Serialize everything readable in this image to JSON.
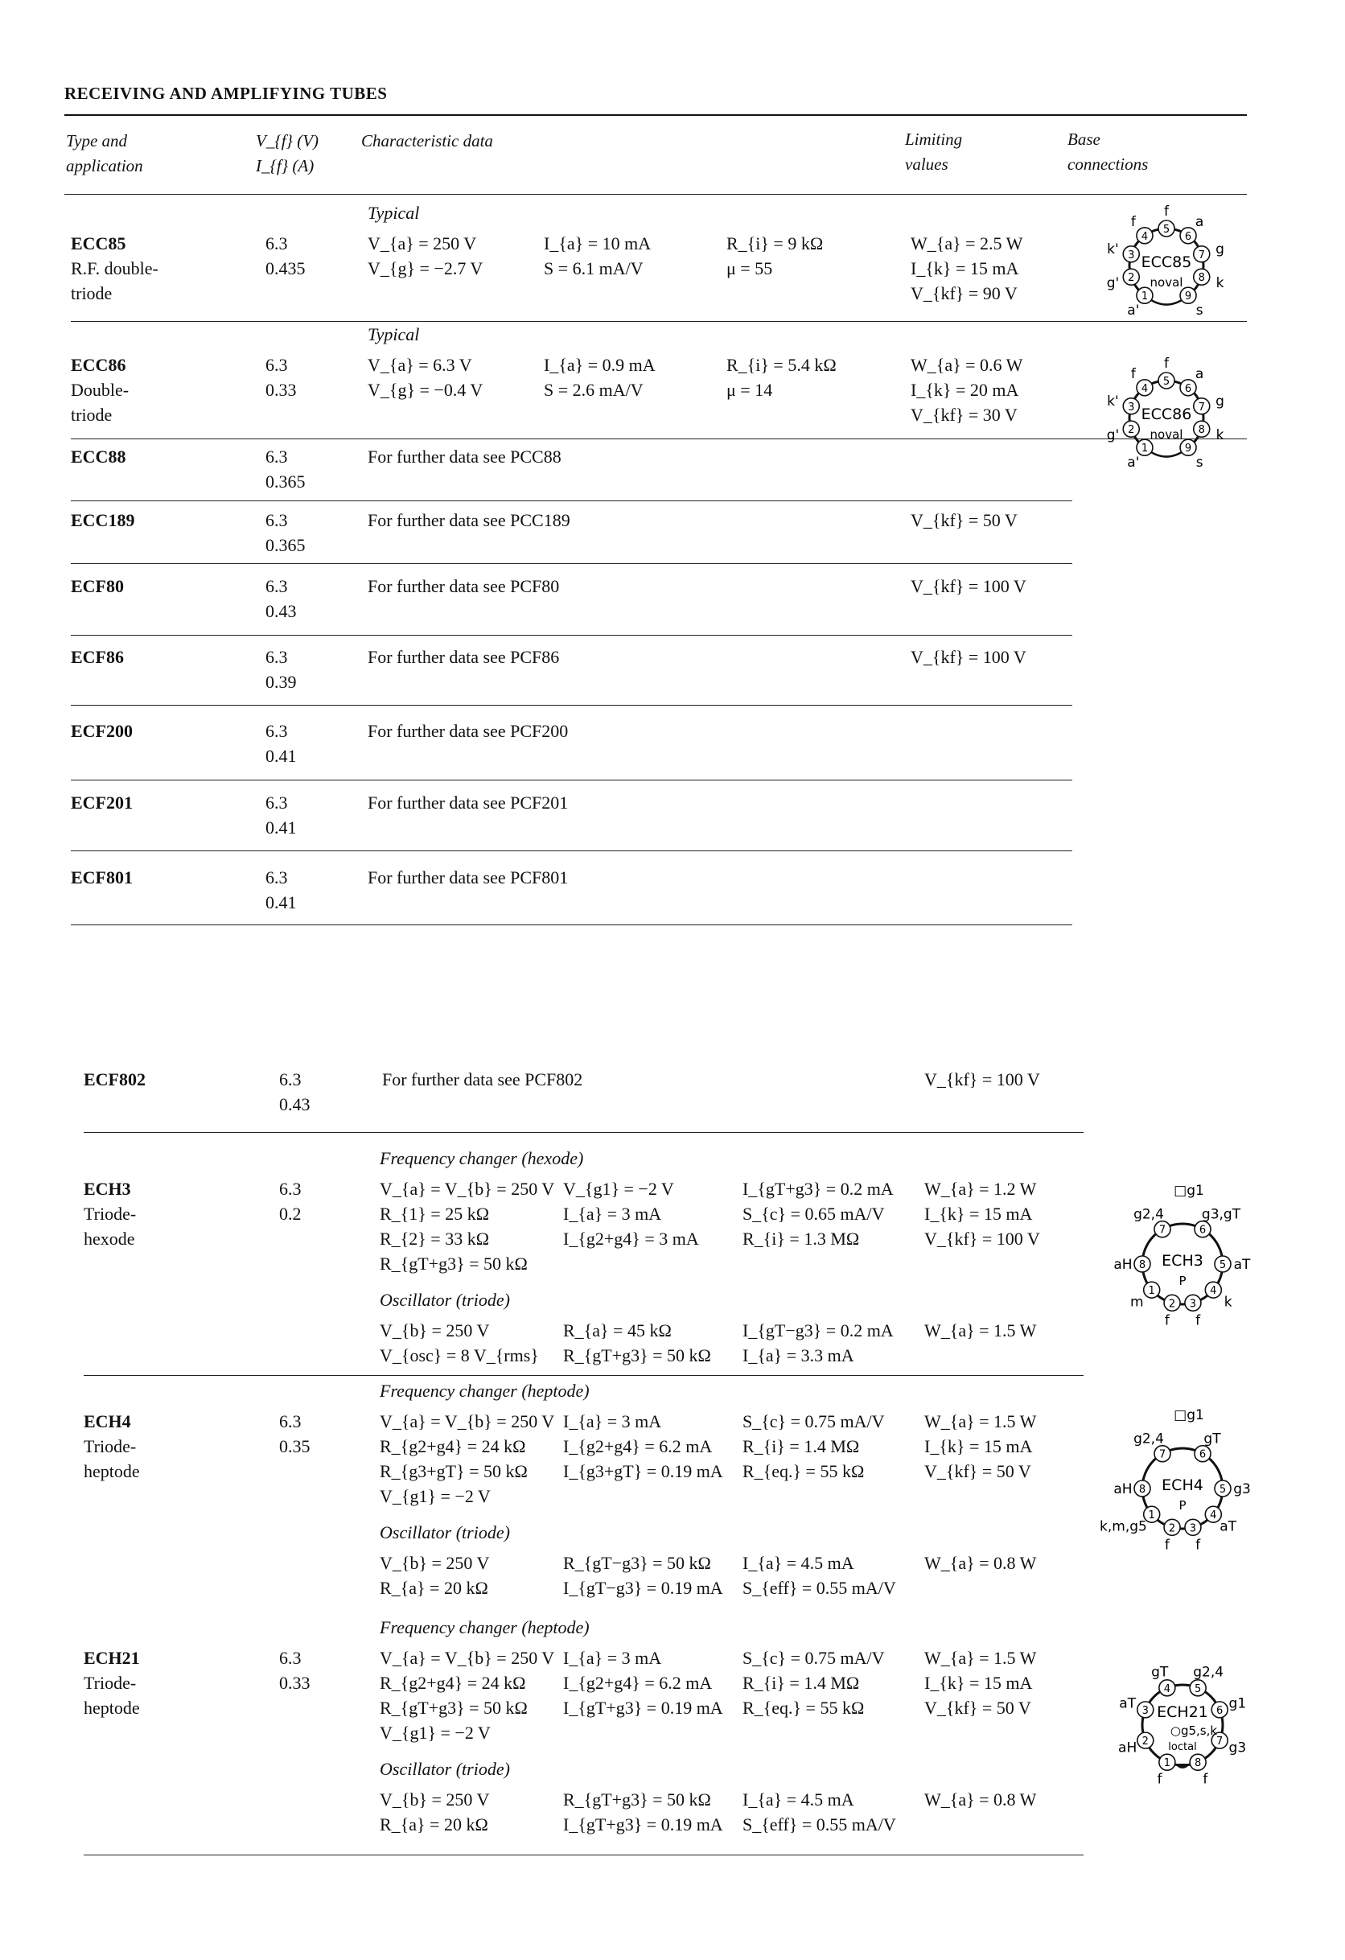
{
  "page_title": "RECEIVING AND AMPLIFYING TUBES",
  "header": {
    "type_line1": "Type and",
    "type_line2": "application",
    "vf": "V_{f} (V)",
    "if": "I_{f} (A)",
    "characteristic": "Characteristic data",
    "limiting_line1": "Limiting",
    "limiting_line2": "values",
    "base_line1": "Base",
    "base_line2": "connections"
  },
  "entries": [
    {
      "type": "ECC85",
      "application": [
        "R.F. double-",
        "triode"
      ],
      "vf": "6.3",
      "if": "0.435",
      "sections": [
        {
          "label": "Typical",
          "rows": [
            [
              "V_{a} = 250 V",
              "I_{a} = 10 mA",
              "R_{i} = 9 kΩ",
              "W_{a} = 2.5 W"
            ],
            [
              "V_{g} = −2.7 V",
              "S = 6.1 mA/V",
              "μ = 55",
              "I_{k} = 15 mA"
            ],
            [
              "",
              "",
              "",
              "V_{kf} = 90 V"
            ]
          ]
        }
      ]
    },
    {
      "type": "ECC86",
      "application": [
        "Double-",
        "triode"
      ],
      "vf": "6.3",
      "if": "0.33",
      "sections": [
        {
          "label": "Typical",
          "rows": [
            [
              "V_{a} = 6.3 V",
              "I_{a} = 0.9 mA",
              "R_{i} = 5.4 kΩ",
              "W_{a} = 0.6 W"
            ],
            [
              "V_{g} = −0.4 V",
              "S = 2.6 mA/V",
              "μ = 14",
              "I_{k} = 20 mA"
            ],
            [
              "",
              "",
              "",
              "V_{kf} = 30 V"
            ]
          ]
        }
      ]
    },
    {
      "type": "ECC88",
      "application": [],
      "vf": "6.3",
      "if": "0.365",
      "note": "For further data see PCC88",
      "limiting": ""
    },
    {
      "type": "ECC189",
      "application": [],
      "vf": "6.3",
      "if": "0.365",
      "note": "For further data see PCC189",
      "limiting": "V_{kf} = 50 V"
    },
    {
      "type": "ECF80",
      "application": [],
      "vf": "6.3",
      "if": "0.43",
      "note": "For further data see PCF80",
      "limiting": "V_{kf} = 100 V"
    },
    {
      "type": "ECF86",
      "application": [],
      "vf": "6.3",
      "if": "0.39",
      "note": "For further data see PCF86",
      "limiting": "V_{kf} = 100 V"
    },
    {
      "type": "ECF200",
      "application": [],
      "vf": "6.3",
      "if": "0.41",
      "note": "For further data see PCF200",
      "limiting": ""
    },
    {
      "type": "ECF201",
      "application": [],
      "vf": "6.3",
      "if": "0.41",
      "note": "For further data see PCF201",
      "limiting": ""
    },
    {
      "type": "ECF801",
      "application": [],
      "vf": "6.3",
      "if": "0.41",
      "note": "For further data see PCF801",
      "limiting": ""
    },
    {
      "type": "ECF802",
      "application": [],
      "vf": "6.3",
      "if": "0.43",
      "note": "For further data see PCF802",
      "limiting": "V_{kf} = 100 V"
    },
    {
      "type": "ECH3",
      "application": [
        "Triode-",
        "hexode"
      ],
      "vf": "6.3",
      "if": "0.2",
      "sections": [
        {
          "label": "Frequency changer (hexode)",
          "rows": [
            [
              "V_{a} = V_{b} = 250 V",
              "V_{g1} = −2 V",
              "I_{gT+g3} = 0.2 mA",
              "W_{a} = 1.2 W"
            ],
            [
              "R_{1} = 25 kΩ",
              "I_{a} = 3 mA",
              "S_{c} = 0.65 mA/V",
              "I_{k} = 15 mA"
            ],
            [
              "R_{2} = 33 kΩ",
              "I_{g2+g4} = 3 mA",
              "R_{i} = 1.3 MΩ",
              "V_{kf} = 100 V"
            ],
            [
              "R_{gT+g3} = 50 kΩ",
              "",
              "",
              ""
            ]
          ]
        },
        {
          "label": "Oscillator (triode)",
          "rows": [
            [
              "V_{b} = 250 V",
              "R_{a} = 45 kΩ",
              "I_{gT−g3} = 0.2 mA",
              "W_{a} = 1.5 W"
            ],
            [
              "V_{osc} = 8 V_{rms}",
              "R_{gT+g3} = 50 kΩ",
              "I_{a} = 3.3 mA",
              ""
            ]
          ]
        }
      ]
    },
    {
      "type": "ECH4",
      "application": [
        "Triode-",
        "heptode"
      ],
      "vf": "6.3",
      "if": "0.35",
      "sections": [
        {
          "label": "Frequency changer (heptode)",
          "rows": [
            [
              "V_{a} = V_{b} = 250 V",
              "I_{a} = 3 mA",
              "S_{c} = 0.75 mA/V",
              "W_{a} = 1.5 W"
            ],
            [
              "R_{g2+g4} = 24 kΩ",
              "I_{g2+g4} = 6.2 mA",
              "R_{i} = 1.4 MΩ",
              "I_{k} = 15 mA"
            ],
            [
              "R_{g3+gT} = 50 kΩ",
              "I_{g3+gT} = 0.19 mA",
              "R_{eq.} = 55 kΩ",
              "V_{kf} = 50 V"
            ],
            [
              "V_{g1} = −2 V",
              "",
              "",
              ""
            ]
          ]
        },
        {
          "label": "Oscillator (triode)",
          "rows": [
            [
              "V_{b} = 250 V",
              "R_{gT−g3} = 50 kΩ",
              "I_{a} = 4.5 mA",
              "W_{a} = 0.8 W"
            ],
            [
              "R_{a} = 20 kΩ",
              "I_{gT−g3} = 0.19 mA",
              "S_{eff} = 0.55 mA/V",
              ""
            ]
          ]
        }
      ]
    },
    {
      "type": "ECH21",
      "application": [
        "Triode-",
        "heptode"
      ],
      "vf": "6.3",
      "if": "0.33",
      "sections": [
        {
          "label": "Frequency changer (heptode)",
          "rows": [
            [
              "V_{a} = V_{b} = 250 V",
              "I_{a} = 3 mA",
              "S_{c} = 0.75 mA/V",
              "W_{a} = 1.5 W"
            ],
            [
              "R_{g2+g4} = 24 kΩ",
              "I_{g2+g4} = 6.2 mA",
              "R_{i} = 1.4 MΩ",
              "I_{k} = 15 mA"
            ],
            [
              "R_{gT+g3} = 50 kΩ",
              "I_{gT+g3} = 0.19 mA",
              "R_{eq.} = 55 kΩ",
              "V_{kf} = 50 V"
            ],
            [
              "V_{g1} = −2 V",
              "",
              "",
              ""
            ]
          ]
        },
        {
          "label": "Oscillator (triode)",
          "rows": [
            [
              "V_{b} = 250 V",
              "R_{gT+g3} = 50 kΩ",
              "I_{a} = 4.5 mA",
              "W_{a} = 0.8 W"
            ],
            [
              "R_{a} = 20 kΩ",
              "I_{gT+g3} = 0.19 mA",
              "S_{eff} = 0.55 mA/V",
              ""
            ]
          ]
        }
      ]
    }
  ],
  "base_diagrams": [
    {
      "tube": "ECC85",
      "base": "noval",
      "center_labels": [
        "ECC85",
        "noval"
      ],
      "pins": [
        [
          "1",
          "a'"
        ],
        [
          "2",
          "g'"
        ],
        [
          "3",
          "k'"
        ],
        [
          "4",
          "f"
        ],
        [
          "5",
          "f"
        ],
        [
          "6",
          "a"
        ],
        [
          "7",
          "g"
        ],
        [
          "8",
          "k"
        ],
        [
          "9",
          "s"
        ]
      ]
    },
    {
      "tube": "ECC86",
      "base": "noval",
      "center_labels": [
        "ECC86",
        "noval"
      ],
      "pins": [
        [
          "1",
          "a'"
        ],
        [
          "2",
          "g'"
        ],
        [
          "3",
          "k'"
        ],
        [
          "4",
          "f"
        ],
        [
          "5",
          "f"
        ],
        [
          "6",
          "a"
        ],
        [
          "7",
          "g"
        ],
        [
          "8",
          "k"
        ],
        [
          "9",
          "s"
        ]
      ]
    },
    {
      "tube": "ECH3",
      "base": "side-contact",
      "center_labels": [
        "ECH3",
        "P"
      ],
      "top_label": "□g1",
      "pins": [
        [
          "1",
          "m"
        ],
        [
          "2",
          "f"
        ],
        [
          "3",
          "f"
        ],
        [
          "4",
          "k"
        ],
        [
          "5",
          "aT"
        ],
        [
          "6",
          "g3,gT"
        ],
        [
          "7",
          "g2,4"
        ],
        [
          "8",
          "aH"
        ]
      ]
    },
    {
      "tube": "ECH4",
      "base": "side-contact",
      "center_labels": [
        "ECH4",
        "P"
      ],
      "top_label": "□g1",
      "pins": [
        [
          "1",
          "k,m,g5"
        ],
        [
          "2",
          "f"
        ],
        [
          "3",
          "f"
        ],
        [
          "4",
          "aT"
        ],
        [
          "5",
          "g3"
        ],
        [
          "6",
          "gT"
        ],
        [
          "7",
          "g2,4"
        ],
        [
          "8",
          "aH"
        ]
      ]
    },
    {
      "tube": "ECH21",
      "base": "loctal",
      "center_labels": [
        "ECH21",
        "loctal"
      ],
      "spigot_label": "○g5,s,k",
      "pins": [
        [
          "1",
          "f"
        ],
        [
          "2",
          "aH"
        ],
        [
          "3",
          "aT"
        ],
        [
          "4",
          "gT"
        ],
        [
          "5",
          "g2,4"
        ],
        [
          "6",
          "g1"
        ],
        [
          "7",
          "g3"
        ],
        [
          "8",
          "f"
        ]
      ]
    }
  ]
}
